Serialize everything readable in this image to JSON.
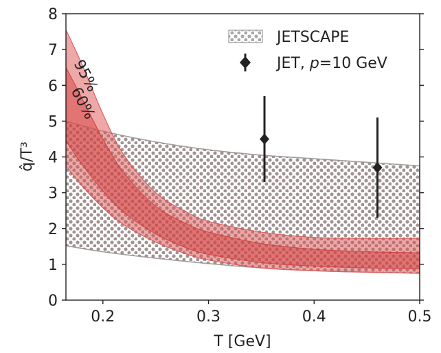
{
  "chart_data": {
    "type": "area",
    "title": "",
    "xlabel": "T [GeV]",
    "ylabel": "q̂/T³",
    "xlim": [
      0.165,
      0.5
    ],
    "ylim": [
      0,
      8
    ],
    "xticks": [
      0.2,
      0.3,
      0.4,
      0.5
    ],
    "xtick_labels": [
      "0.2",
      "0.3",
      "0.4",
      "0.5"
    ],
    "yticks": [
      0,
      1,
      2,
      3,
      4,
      5,
      6,
      7,
      8
    ],
    "ytick_labels": [
      "0",
      "1",
      "2",
      "3",
      "4",
      "5",
      "6",
      "7",
      "8"
    ],
    "grid": false,
    "legend_position": "top-right",
    "series": [
      {
        "name": "JETSCAPE",
        "style": "dotted-hatch-band",
        "color": "#999999",
        "x": [
          0.165,
          0.2,
          0.25,
          0.3,
          0.35,
          0.4,
          0.45,
          0.5
        ],
        "lower": [
          1.52,
          1.35,
          1.17,
          1.02,
          0.9,
          0.82,
          0.78,
          0.75
        ],
        "upper": [
          5.0,
          4.72,
          4.42,
          4.2,
          4.05,
          3.95,
          3.85,
          3.75
        ]
      },
      {
        "name": "95%",
        "style": "band",
        "color": "#e06060",
        "x": [
          0.165,
          0.18,
          0.2,
          0.22,
          0.25,
          0.28,
          0.3,
          0.35,
          0.4,
          0.45,
          0.5
        ],
        "lower": [
          3.75,
          3.2,
          2.58,
          2.1,
          1.62,
          1.28,
          1.12,
          0.9,
          0.82,
          0.78,
          0.75
        ],
        "upper": [
          7.55,
          6.6,
          5.2,
          4.05,
          3.0,
          2.45,
          2.2,
          1.9,
          1.75,
          1.72,
          1.72
        ]
      },
      {
        "name": "60%",
        "style": "band",
        "color": "#d84848",
        "x": [
          0.165,
          0.18,
          0.2,
          0.22,
          0.25,
          0.28,
          0.3,
          0.35,
          0.4,
          0.45,
          0.5
        ],
        "lower": [
          4.45,
          3.8,
          3.05,
          2.45,
          1.85,
          1.45,
          1.28,
          1.05,
          0.95,
          0.9,
          0.87
        ],
        "upper": [
          6.5,
          5.65,
          4.5,
          3.55,
          2.62,
          2.12,
          1.9,
          1.58,
          1.42,
          1.35,
          1.32
        ]
      },
      {
        "name": "JET, p=10 GeV",
        "style": "errorbar",
        "color": "#222222",
        "points": [
          {
            "x": 0.353,
            "y": 4.5,
            "ylo": 3.3,
            "yhi": 5.7
          },
          {
            "x": 0.46,
            "y": 3.7,
            "ylo": 2.3,
            "yhi": 5.1
          }
        ]
      }
    ],
    "legend": {
      "jetscape_label": "JETSCAPE",
      "jet_label_prefix": "JET, ",
      "jet_label_var": "p",
      "jet_label_suffix": "=10 GeV"
    },
    "annotations": [
      {
        "text": "95%",
        "near_band": "95%"
      },
      {
        "text": "60%",
        "near_band": "60%"
      }
    ]
  }
}
